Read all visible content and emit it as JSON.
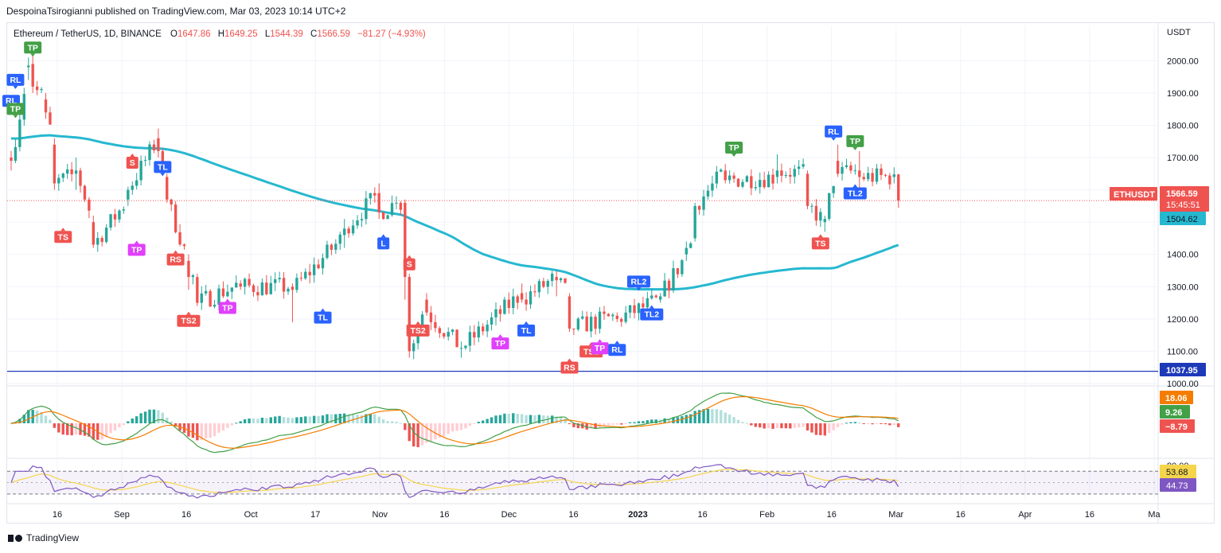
{
  "publisher": "DespoinaTsirogianni published on TradingView.com, Mar 03, 2023 10:14 UTC+2",
  "footer_logo_text": "TradingView",
  "header": {
    "symbol": "Ethereum / TetherUS, 1D, BINANCE",
    "open_label": "O",
    "open": "1647.86",
    "high_label": "H",
    "high": "1649.25",
    "low_label": "L",
    "low": "1544.39",
    "close_label": "C",
    "close": "1566.59",
    "change": "−81.27 (−4.93%)"
  },
  "colors": {
    "up": "#26a69a",
    "down": "#ef5350",
    "ma": "#26b8d0",
    "support": "#1e3ab8",
    "rsi": "#7e57c2",
    "rsi_ma": "#f5d54c",
    "macd_line": "#43a047",
    "signal_line": "#f57c00"
  },
  "chart_data": [
    {
      "type": "candlestick",
      "name": "ETHUSDT",
      "axis_unit": "USDT",
      "ylim": [
        1000,
        2060
      ],
      "y_ticks": [
        1000,
        1100,
        1200,
        1300,
        1400,
        1500,
        1600,
        1700,
        1800,
        1900,
        2000
      ],
      "x_ticks": [
        "16",
        "Sep",
        "16",
        "Oct",
        "17",
        "Nov",
        "16",
        "Dec",
        "16",
        "2023",
        "16",
        "Feb",
        "16",
        "Mar",
        "16",
        "Apr",
        "16",
        "Ma"
      ],
      "x_range": [
        "2022-08-09",
        "2023-05-01"
      ],
      "last_price": "1566.59",
      "countdown": "15:45:51",
      "symbol_label": "ETHUSDT",
      "moving_average_value": "1504.62",
      "support_level": "1037.95",
      "ohlc_anchor": [
        [
          "2022-08-09",
          1700,
          1720,
          1660,
          1690
        ],
        [
          "2022-08-13",
          1980,
          2010,
          1940,
          1985
        ],
        [
          "2022-08-14",
          1990,
          2030,
          1900,
          1920
        ],
        [
          "2022-08-17",
          1880,
          1900,
          1820,
          1840
        ],
        [
          "2022-08-19",
          1740,
          1760,
          1600,
          1620
        ],
        [
          "2022-08-24",
          1650,
          1700,
          1600,
          1660
        ],
        [
          "2022-08-28",
          1500,
          1520,
          1420,
          1430
        ],
        [
          "2022-09-05",
          1570,
          1610,
          1550,
          1600
        ],
        [
          "2022-09-12",
          1760,
          1790,
          1700,
          1720
        ],
        [
          "2022-09-14",
          1640,
          1650,
          1560,
          1570
        ],
        [
          "2022-09-19",
          1380,
          1400,
          1290,
          1330
        ],
        [
          "2022-09-21",
          1330,
          1340,
          1240,
          1250
        ],
        [
          "2022-10-01",
          1310,
          1320,
          1290,
          1300
        ],
        [
          "2022-10-13",
          1300,
          1310,
          1190,
          1290
        ],
        [
          "2022-10-25",
          1460,
          1510,
          1420,
          1480
        ],
        [
          "2022-11-02",
          1590,
          1620,
          1510,
          1530
        ],
        [
          "2022-11-06",
          1560,
          1580,
          1540,
          1560
        ],
        [
          "2022-11-08",
          1560,
          1570,
          1260,
          1330
        ],
        [
          "2022-11-09",
          1330,
          1340,
          1080,
          1100
        ],
        [
          "2022-11-13",
          1260,
          1280,
          1210,
          1220
        ],
        [
          "2022-11-21",
          1110,
          1130,
          1080,
          1110
        ],
        [
          "2022-12-05",
          1280,
          1310,
          1250,
          1260
        ],
        [
          "2022-12-13",
          1330,
          1350,
          1270,
          1320
        ],
        [
          "2022-12-16",
          1270,
          1280,
          1160,
          1170
        ],
        [
          "2022-12-27",
          1210,
          1220,
          1190,
          1200
        ],
        [
          "2023-01-06",
          1260,
          1280,
          1250,
          1270
        ],
        [
          "2023-01-12",
          1400,
          1440,
          1380,
          1420
        ],
        [
          "2023-01-14",
          1450,
          1560,
          1440,
          1550
        ],
        [
          "2023-01-21",
          1660,
          1680,
          1620,
          1630
        ],
        [
          "2023-02-02",
          1640,
          1710,
          1620,
          1660
        ],
        [
          "2023-02-09",
          1650,
          1660,
          1540,
          1550
        ],
        [
          "2023-02-13",
          1500,
          1520,
          1470,
          1510
        ],
        [
          "2023-02-16",
          1690,
          1740,
          1640,
          1650
        ],
        [
          "2023-02-21",
          1660,
          1720,
          1600,
          1640
        ],
        [
          "2023-03-01",
          1640,
          1670,
          1620,
          1647.86
        ],
        [
          "2023-03-02",
          1647.86,
          1649.25,
          1544.39,
          1566.59
        ]
      ],
      "signals": [
        {
          "label": "TP",
          "date": "2022-08-14",
          "price": 2010,
          "color": "#43a047",
          "pos": "above"
        },
        {
          "label": "RL",
          "date": "2022-08-10",
          "price": 1910,
          "color": "#2962ff",
          "pos": "above"
        },
        {
          "label": "RL",
          "date": "2022-08-09",
          "price": 1845,
          "color": "#2962ff",
          "pos": "above"
        },
        {
          "label": "TP",
          "date": "2022-08-10",
          "price": 1820,
          "color": "#43a047",
          "pos": "above"
        },
        {
          "label": "TS",
          "date": "2022-08-21",
          "price": 1485,
          "color": "#ef5350",
          "pos": "below"
        },
        {
          "label": "S",
          "date": "2022-09-06",
          "price": 1715,
          "color": "#ef5350",
          "pos": "below"
        },
        {
          "label": "TP",
          "date": "2022-09-07",
          "price": 1445,
          "color": "#e040fb",
          "pos": "below"
        },
        {
          "label": "TL",
          "date": "2022-09-13",
          "price": 1640,
          "color": "#2962ff",
          "pos": "above"
        },
        {
          "label": "RS",
          "date": "2022-09-16",
          "price": 1415,
          "color": "#ef5350",
          "pos": "below"
        },
        {
          "label": "TS2",
          "date": "2022-09-19",
          "price": 1225,
          "color": "#ef5350",
          "pos": "below"
        },
        {
          "label": "TP",
          "date": "2022-09-28",
          "price": 1265,
          "color": "#e040fb",
          "pos": "below"
        },
        {
          "label": "TL",
          "date": "2022-10-20",
          "price": 1235,
          "color": "#2962ff",
          "pos": "below"
        },
        {
          "label": "L",
          "date": "2022-11-03",
          "price": 1465,
          "color": "#2962ff",
          "pos": "below"
        },
        {
          "label": "S",
          "date": "2022-11-09",
          "price": 1400,
          "color": "#ef5350",
          "pos": "below"
        },
        {
          "label": "TS2",
          "date": "2022-11-11",
          "price": 1195,
          "color": "#ef5350",
          "pos": "below"
        },
        {
          "label": "TP",
          "date": "2022-11-30",
          "price": 1155,
          "color": "#e040fb",
          "pos": "below"
        },
        {
          "label": "TL",
          "date": "2022-12-06",
          "price": 1195,
          "color": "#2962ff",
          "pos": "below"
        },
        {
          "label": "RS",
          "date": "2022-12-16",
          "price": 1080,
          "color": "#ef5350",
          "pos": "below"
        },
        {
          "label": "TS2",
          "date": "2022-12-21",
          "price": 1130,
          "color": "#ef5350",
          "pos": "below"
        },
        {
          "label": "TP",
          "date": "2022-12-23",
          "price": 1140,
          "color": "#e040fb",
          "pos": "below"
        },
        {
          "label": "RL",
          "date": "2022-12-27",
          "price": 1135,
          "color": "#2962ff",
          "pos": "below"
        },
        {
          "label": "RL2",
          "date": "2023-01-01",
          "price": 1285,
          "color": "#2962ff",
          "pos": "above"
        },
        {
          "label": "TL2",
          "date": "2023-01-04",
          "price": 1245,
          "color": "#2962ff",
          "pos": "below"
        },
        {
          "label": "TP",
          "date": "2023-01-23",
          "price": 1700,
          "color": "#43a047",
          "pos": "above"
        },
        {
          "label": "TS",
          "date": "2023-02-12",
          "price": 1465,
          "color": "#ef5350",
          "pos": "below"
        },
        {
          "label": "RL",
          "date": "2023-02-15",
          "price": 1750,
          "color": "#2962ff",
          "pos": "above"
        },
        {
          "label": "TP",
          "date": "2023-02-20",
          "price": 1720,
          "color": "#43a047",
          "pos": "above"
        },
        {
          "label": "TL2",
          "date": "2023-02-20",
          "price": 1620,
          "color": "#2962ff",
          "pos": "below"
        }
      ]
    },
    {
      "type": "macd",
      "macd_value": "9.26",
      "signal_value": "18.06",
      "histogram_value": "−8.79"
    },
    {
      "type": "rsi",
      "ylim": [
        20,
        90
      ],
      "y_ticks": [
        80
      ],
      "bands": [
        30,
        70
      ],
      "rsi_value": "44.73",
      "rsi_ma_value": "53.68"
    }
  ]
}
